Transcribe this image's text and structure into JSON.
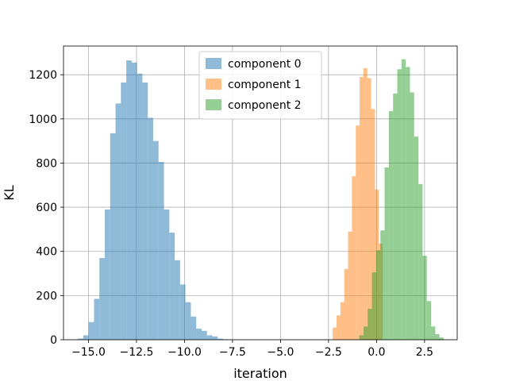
{
  "chart_data": {
    "type": "bar",
    "title": "",
    "xlabel": "iteration",
    "ylabel": "KL",
    "xlim": [
      -16.3,
      4.2
    ],
    "ylim": [
      0,
      1330
    ],
    "x_ticks": [
      -15.0,
      -12.5,
      -10.0,
      -7.5,
      -5.0,
      -2.5,
      0.0,
      2.5
    ],
    "x_tick_labels": [
      "−15.0",
      "−12.5",
      "−10.0",
      "−7.5",
      "−5.0",
      "−2.5",
      "0.0",
      "2.5"
    ],
    "y_ticks": [
      0,
      200,
      400,
      600,
      800,
      1000,
      1200
    ],
    "y_tick_labels": [
      "0",
      "200",
      "400",
      "600",
      "800",
      "1000",
      "1200"
    ],
    "grid": true,
    "legend_position": "top-center",
    "series": [
      {
        "name": "component 0",
        "color": "#1f77b4",
        "opacity": 0.5,
        "bin_edges": [
          -15.55,
          -15.27,
          -14.99,
          -14.71,
          -14.43,
          -14.15,
          -13.87,
          -13.59,
          -13.31,
          -13.03,
          -12.75,
          -12.47,
          -12.19,
          -11.91,
          -11.63,
          -11.35,
          -11.07,
          -10.79,
          -10.51,
          -10.23,
          -9.95,
          -9.67,
          -9.39,
          -9.11,
          -8.83,
          -8.55,
          -8.27,
          -7.99,
          -7.71
        ],
        "values": [
          5,
          20,
          80,
          185,
          370,
          590,
          935,
          1070,
          1165,
          1265,
          1255,
          1205,
          1165,
          1005,
          900,
          805,
          590,
          485,
          360,
          250,
          170,
          105,
          50,
          40,
          20,
          15,
          5,
          2
        ]
      },
      {
        "name": "component 1",
        "color": "#ff7f0e",
        "opacity": 0.5,
        "bin_edges": [
          -2.28,
          -2.08,
          -1.88,
          -1.68,
          -1.48,
          -1.28,
          -1.08,
          -0.88,
          -0.68,
          -0.48,
          -0.28,
          -0.08,
          0.12,
          0.32
        ],
        "values": [
          55,
          110,
          170,
          320,
          490,
          740,
          970,
          1190,
          1230,
          1185,
          1045,
          680,
          435
        ]
      },
      {
        "name": "component 2",
        "color": "#2ca02c",
        "opacity": 0.5,
        "bin_edges": [
          -0.9,
          -0.68,
          -0.46,
          -0.24,
          -0.02,
          0.2,
          0.42,
          0.64,
          0.86,
          1.08,
          1.3,
          1.52,
          1.74,
          1.96,
          2.18,
          2.4,
          2.62,
          2.84,
          3.06,
          3.28,
          3.5
        ],
        "values": [
          20,
          60,
          140,
          305,
          405,
          495,
          780,
          1035,
          1115,
          1225,
          1270,
          1235,
          1120,
          920,
          705,
          380,
          175,
          60,
          25,
          10
        ]
      }
    ]
  }
}
